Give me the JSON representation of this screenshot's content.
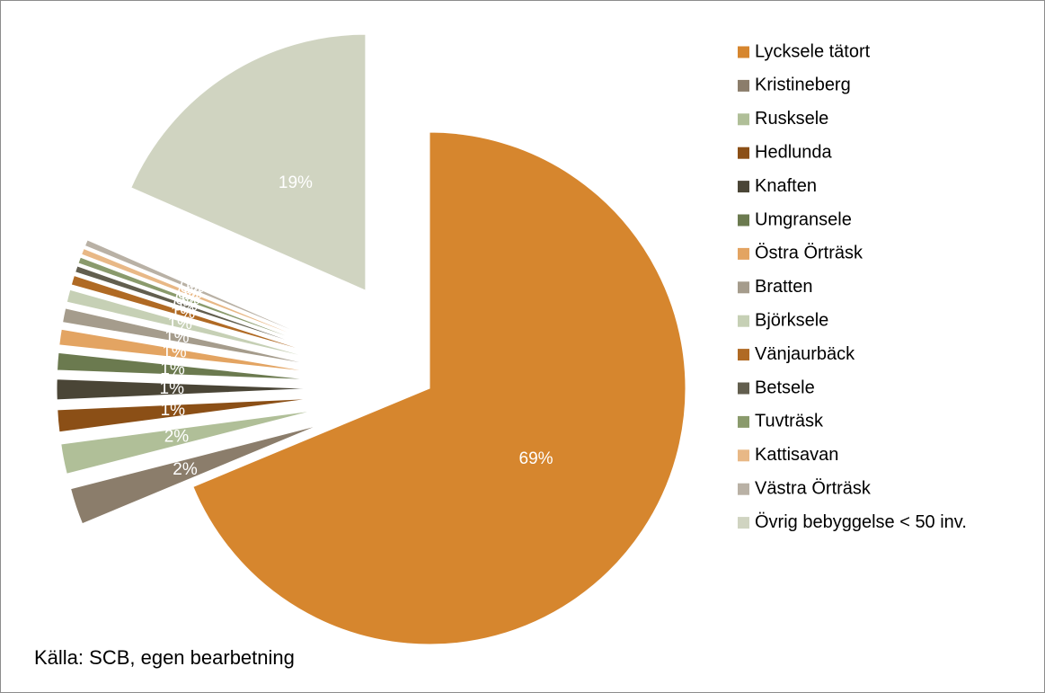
{
  "chart_data": {
    "type": "pie",
    "categories": [
      "Lycksele tätort",
      "Kristineberg",
      "Rusksele",
      "Hedlunda",
      "Knaften",
      "Umgransele",
      "Östra Örträsk",
      "Bratten",
      "Björksele",
      "Vänjaurbäck",
      "Betsele",
      "Tuvträsk",
      "Kattisavan",
      "Västra Örträsk",
      "Övrig bebyggelse < 50 inv."
    ],
    "values": [
      69,
      2.3,
      1.9,
      1.4,
      1.3,
      1.1,
      1.0,
      0.9,
      0.8,
      0.6,
      0.4,
      0.4,
      0.4,
      0.4,
      18.5
    ],
    "value_labels": [
      "69%",
      "2%",
      "2%",
      "1%",
      "1%",
      "1%",
      "1%",
      "1%",
      "1%",
      "1%",
      "0%",
      "0%",
      "0%",
      "0%",
      "19%"
    ],
    "colors": [
      "#d6862e",
      "#8b7d6b",
      "#b0bf98",
      "#8b4f16",
      "#4a4536",
      "#6b7a4f",
      "#e3a462",
      "#a59c8c",
      "#c6d0b5",
      "#b06a24",
      "#625e4e",
      "#8a9a6c",
      "#e8b886",
      "#b9b1a5",
      "#d0d4c1"
    ],
    "legend": "right",
    "annotations": [
      "Källa: SCB, egen bearbetning"
    ]
  }
}
